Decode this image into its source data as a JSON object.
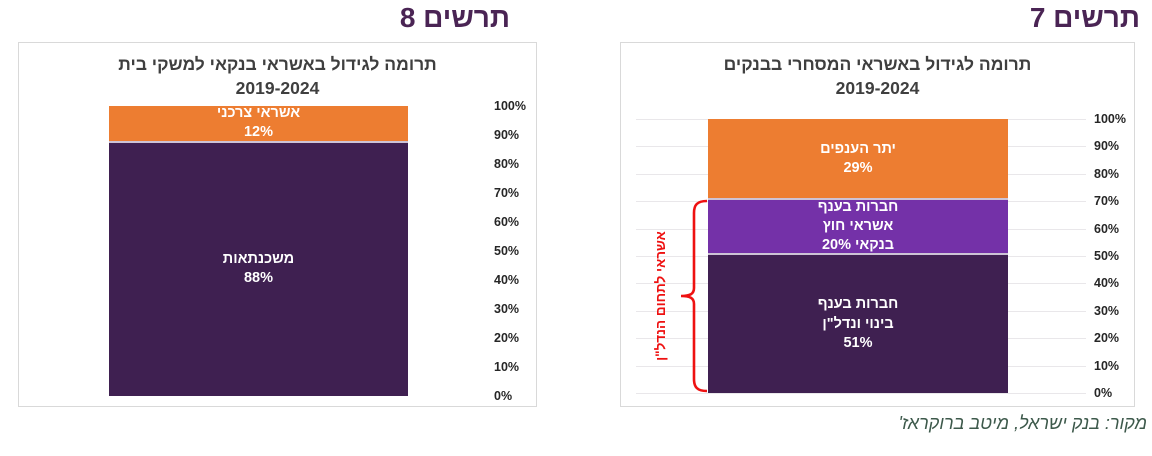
{
  "source_note": "מקור: בנק ישראל, מיטב ברוקראז'",
  "colors": {
    "heading_purple": "#4a2454",
    "title_gray": "#3f3f3f",
    "orange": "#ed7d31",
    "purple": "#7431a8",
    "dark_purple": "#3f2051",
    "annotation_red": "#ee1111",
    "source_note_green": "#3d594b",
    "grid_gray": "#e9e7ea",
    "card_border": "#d9d9d9"
  },
  "chart_data": [
    {
      "type": "bar",
      "stacked": true,
      "heading": "תרשים 7",
      "title_line1": "תרומה לגידול באשראי המסחרי בבנקים",
      "title_line2": "2019-2024",
      "categories": [
        "2019-2024"
      ],
      "ylim": [
        0,
        100
      ],
      "yticks": [
        "100%",
        "90%",
        "80%",
        "70%",
        "60%",
        "50%",
        "40%",
        "30%",
        "20%",
        "10%",
        "0%"
      ],
      "axis_side": "right",
      "grid": true,
      "legend": "none",
      "series": [
        {
          "key": "construction-real-estate",
          "name": "חברות בענף בינוי ונדל\"ן",
          "values": [
            51
          ],
          "color": "#3f2051",
          "label_lines": [
            "חברות בענף",
            "בינוי ונדל\"ן",
            "51%"
          ]
        },
        {
          "key": "non-bank-credit",
          "name": "חברות בענף אשראי חוץ בנקאי",
          "values": [
            20
          ],
          "color": "#7431a8",
          "label_lines": [
            "חברות בענף",
            "אשראי חוץ",
            "בנקאי  20%"
          ]
        },
        {
          "key": "other-sectors",
          "name": "יתר הענפים",
          "values": [
            29
          ],
          "color": "#ed7d31",
          "label_lines": [
            "יתר הענפים",
            "29%"
          ]
        }
      ],
      "annotation": {
        "text": "אשראי לתחום הנדל\"ן",
        "color": "#ee1111",
        "covers_range_pct": [
          0,
          71
        ]
      }
    },
    {
      "type": "bar",
      "stacked": true,
      "heading": "תרשים 8",
      "title_line1": "תרומה לגידול באשראי בנקאי למשקי בית",
      "title_line2": "2019-2024",
      "categories": [
        "2019-2024"
      ],
      "ylim": [
        0,
        100
      ],
      "yticks": [
        "100%",
        "90%",
        "80%",
        "70%",
        "60%",
        "50%",
        "40%",
        "30%",
        "20%",
        "10%",
        "0%"
      ],
      "axis_side": "right",
      "grid": false,
      "legend": "none",
      "series": [
        {
          "key": "mortgages",
          "name": "משכנתאות",
          "values": [
            88
          ],
          "color": "#3f2051",
          "label_lines": [
            "משכנתאות",
            "88%"
          ]
        },
        {
          "key": "consumer-credit",
          "name": "אשראי צרכני",
          "values": [
            12
          ],
          "color": "#ed7d31",
          "label_lines": [
            "אשראי צרכני",
            "12%"
          ]
        }
      ]
    }
  ]
}
